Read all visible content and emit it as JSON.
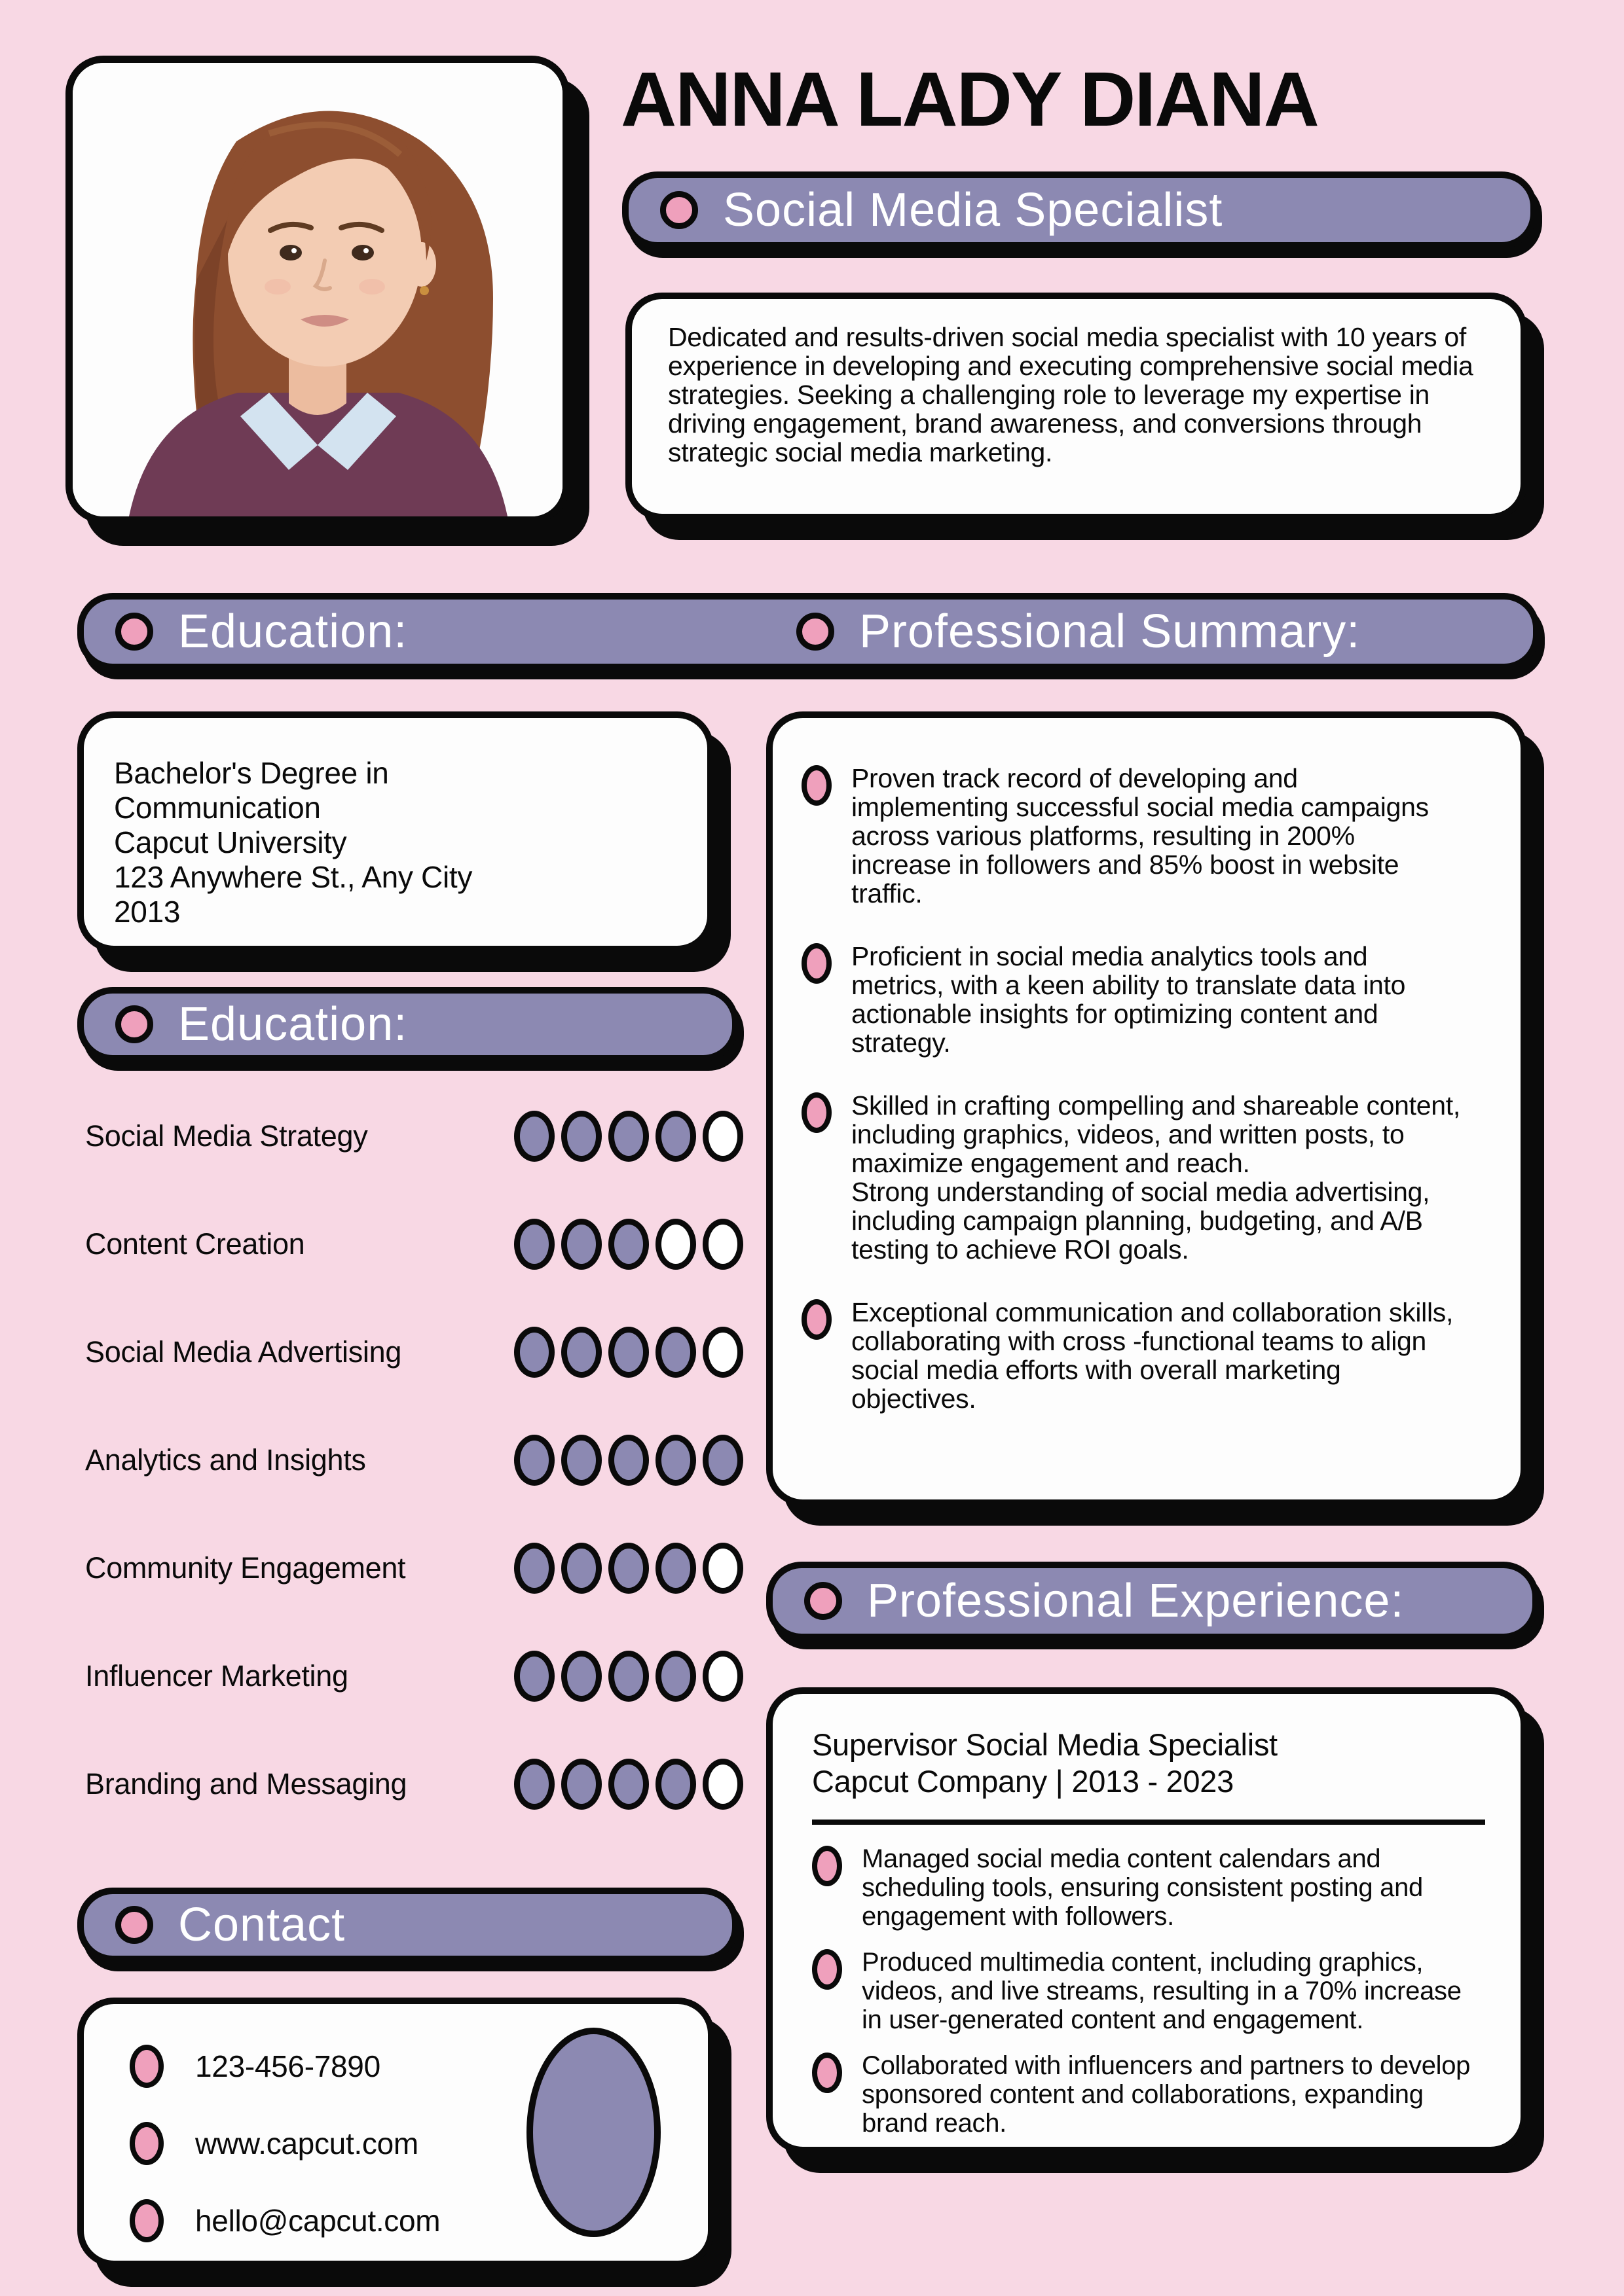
{
  "colors": {
    "background": "#f8d8e4",
    "banner_purple": "#8c89b2",
    "pink_accent": "#efa0bc",
    "card_white": "#fdfdfd",
    "ink": "#0a0a0a"
  },
  "header": {
    "name": "ANNA LADY DIANA",
    "title": "Social Media Specialist",
    "about": "Dedicated and results-driven social media specialist with 10 years of experience in developing and executing comprehensive social media strategies. Seeking a challenging role to leverage my expertise in driving engagement, brand awareness, and conversions through strategic social media marketing."
  },
  "sections": {
    "education": {
      "heading": "Education:",
      "details": "Bachelor's Degree in\nCommunication\nCapcut University\n123 Anywhere St., Any City\n2013"
    },
    "professional_summary": {
      "heading": "Professional Summary:",
      "bullets": [
        "Proven track record of developing and implementing successful social media campaigns across various platforms, resulting in 200% increase in followers and 85% boost in website traffic.",
        "Proficient in social media analytics tools and metrics, with a keen ability to translate data into actionable insights for optimizing content and strategy.",
        "Skilled in crafting compelling and shareable content, including graphics, videos, and written posts, to maximize engagement and reach.\nStrong understanding of social media advertising, including campaign planning, budgeting, and A/B testing to achieve ROI goals.",
        "Exceptional communication and collaboration skills, collaborating with cross -functional teams to align social media efforts with overall marketing objectives."
      ]
    },
    "skills": {
      "heading": "Education:",
      "max_rating": 5,
      "items": [
        {
          "name": "Social Media Strategy",
          "rating": 4
        },
        {
          "name": "Content Creation",
          "rating": 3
        },
        {
          "name": "Social Media Advertising",
          "rating": 4
        },
        {
          "name": "Analytics and Insights",
          "rating": 5
        },
        {
          "name": "Community Engagement",
          "rating": 4
        },
        {
          "name": "Influencer Marketing",
          "rating": 4
        },
        {
          "name": "Branding and Messaging",
          "rating": 4
        }
      ]
    },
    "contact": {
      "heading": "Contact",
      "phone": "123-456-7890",
      "website": "www.capcut.com",
      "email": "hello@capcut.com"
    },
    "experience": {
      "heading": "Professional Experience:",
      "role": "Supervisor Social Media Specialist",
      "company_period": "Capcut Company | 2013 - 2023",
      "bullets": [
        "Managed social media content calendars and scheduling tools, ensuring consistent posting and engagement with followers.",
        "Produced multimedia content, including graphics, videos, and live streams, resulting in a 70% increase in user-generated content and engagement.",
        "Collaborated with influencers and partners to develop sponsored content and collaborations, expanding brand reach."
      ]
    }
  }
}
